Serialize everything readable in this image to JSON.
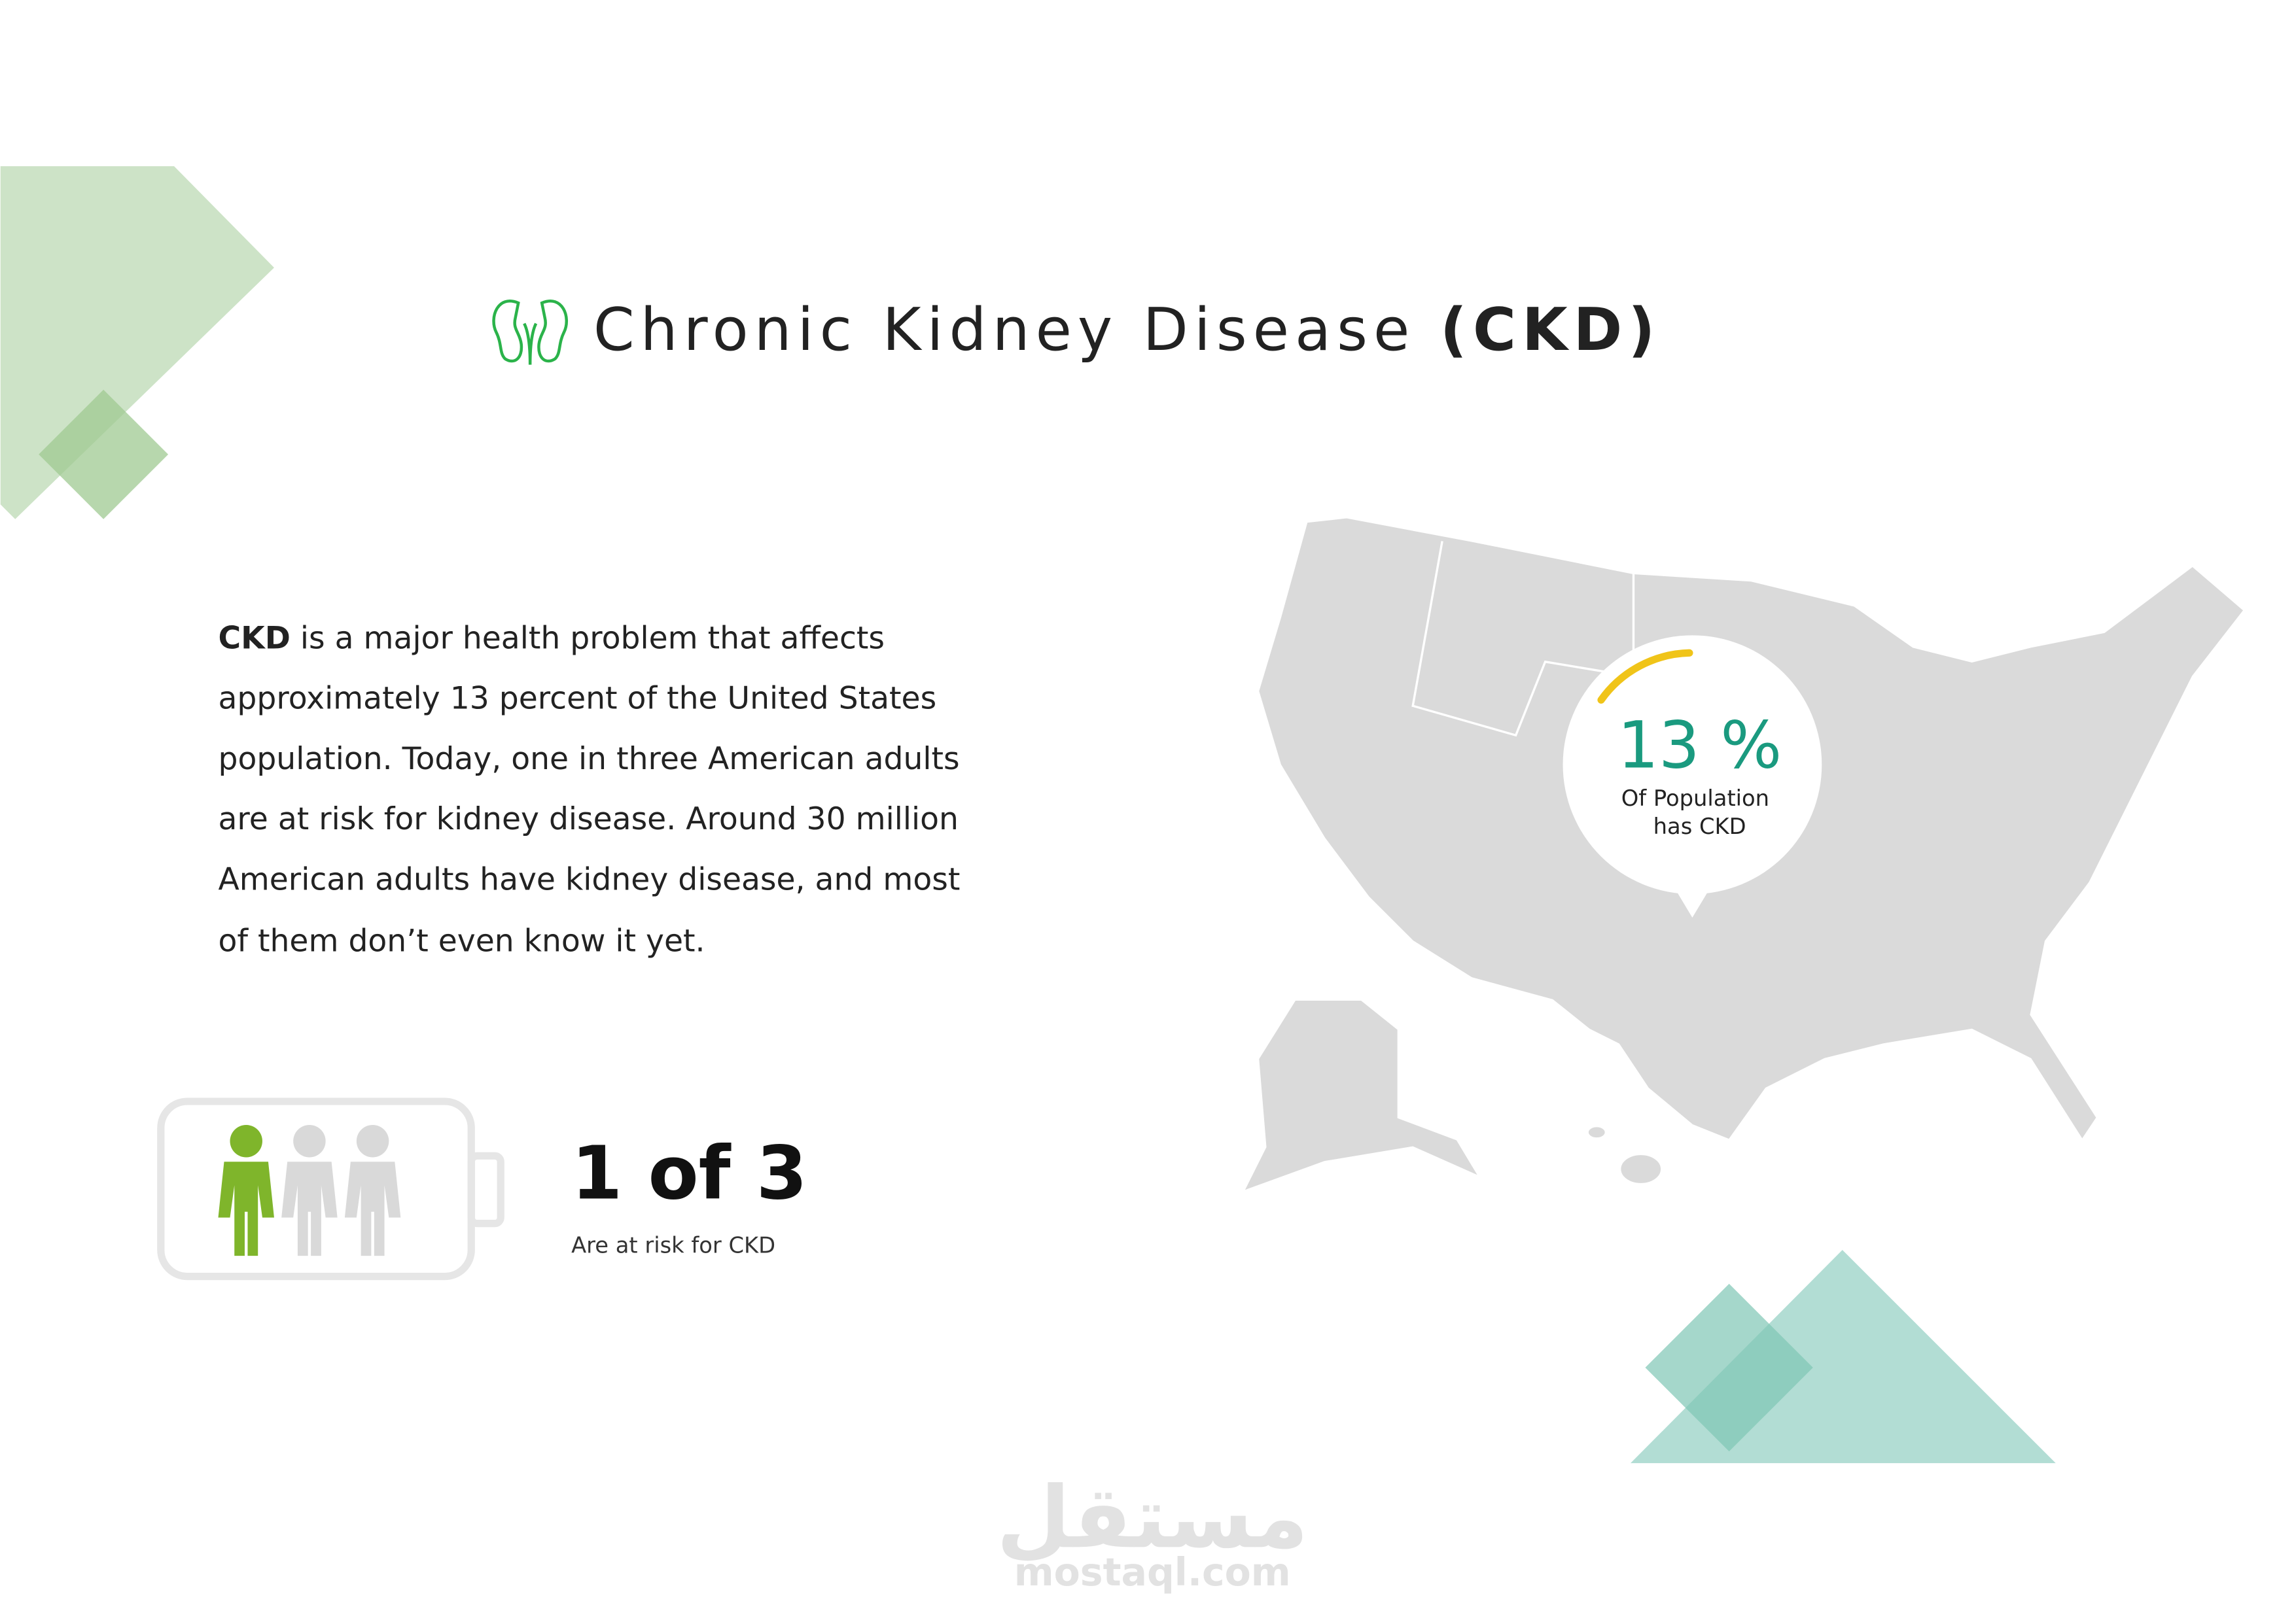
{
  "header": {
    "title": "Chronic Kidney Disease",
    "title_bold": "(CKD)"
  },
  "paragraph": {
    "lead": "CKD",
    "lines": [
      " is a major health problem that affects",
      "approximately 13 percent of the United States",
      "population. Today, one in three American adults",
      "are at risk for kidney disease. Around 30 million",
      "American adults have kidney disease, and most",
      "of them don’t even know it yet."
    ]
  },
  "stat": {
    "value": "1 of 3",
    "caption": "Are at risk for CKD"
  },
  "map_callout": {
    "value": "13 %",
    "line1": "Of Population",
    "line2": "has CKD"
  },
  "watermark": {
    "arabic": "مستقل",
    "site": "mostaql.com"
  }
}
